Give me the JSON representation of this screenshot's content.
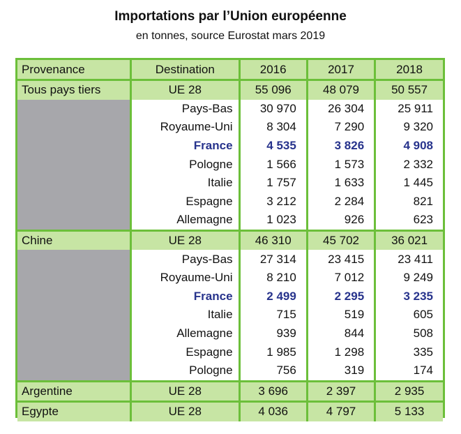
{
  "title": "Importations par l’Union européenne",
  "subtitle": "en tonnes, source Eurostat mars 2019",
  "colors": {
    "border": "#6cbf3a",
    "header_fill": "#c7e5a4",
    "group_fill": "#c7e5a4",
    "provenance_span_fill": "#a7a7ab",
    "highlight_text": "#27338c"
  },
  "table": {
    "headers": [
      "Provenance",
      "Destination",
      "2016",
      "2017",
      "2018"
    ],
    "groups": [
      {
        "provenance": "Tous pays tiers",
        "destination": "UE 28",
        "values": [
          "55 096",
          "48 079",
          "50 557"
        ],
        "rows": [
          {
            "destination": "Pays-Bas",
            "values": [
              "30 970",
              "26 304",
              "25 911"
            ],
            "highlight": false
          },
          {
            "destination": "Royaume-Uni",
            "values": [
              "8 304",
              "7 290",
              "9 320"
            ],
            "highlight": false
          },
          {
            "destination": "France",
            "values": [
              "4 535",
              "3 826",
              "4 908"
            ],
            "highlight": true
          },
          {
            "destination": "Pologne",
            "values": [
              "1 566",
              "1 573",
              "2 332"
            ],
            "highlight": false
          },
          {
            "destination": "Italie",
            "values": [
              "1 757",
              "1 633",
              "1 445"
            ],
            "highlight": false
          },
          {
            "destination": "Espagne",
            "values": [
              "3 212",
              "2 284",
              "821"
            ],
            "highlight": false
          },
          {
            "destination": "Allemagne",
            "values": [
              "1 023",
              "926",
              "623"
            ],
            "highlight": false
          }
        ]
      },
      {
        "provenance": "Chine",
        "destination": "UE 28",
        "values": [
          "46 310",
          "45 702",
          "36 021"
        ],
        "rows": [
          {
            "destination": "Pays-Bas",
            "values": [
              "27 314",
              "23 415",
              "23 411"
            ],
            "highlight": false
          },
          {
            "destination": "Royaume-Uni",
            "values": [
              "8 210",
              "7 012",
              "9 249"
            ],
            "highlight": false
          },
          {
            "destination": "France",
            "values": [
              "2 499",
              "2 295",
              "3 235"
            ],
            "highlight": true
          },
          {
            "destination": "Italie",
            "values": [
              "715",
              "519",
              "605"
            ],
            "highlight": false
          },
          {
            "destination": "Allemagne",
            "values": [
              "939",
              "844",
              "508"
            ],
            "highlight": false
          },
          {
            "destination": "Espagne",
            "values": [
              "1 985",
              "1 298",
              "335"
            ],
            "highlight": false
          },
          {
            "destination": "Pologne",
            "values": [
              "756",
              "319",
              "174"
            ],
            "highlight": false
          }
        ]
      },
      {
        "provenance": "Argentine",
        "destination": "UE 28",
        "values": [
          "3 696",
          "2 397",
          "2 935"
        ],
        "rows": []
      },
      {
        "provenance": "Egypte",
        "destination": "UE 28",
        "values": [
          "4 036",
          "4 797",
          "5 133"
        ],
        "rows": []
      }
    ]
  }
}
